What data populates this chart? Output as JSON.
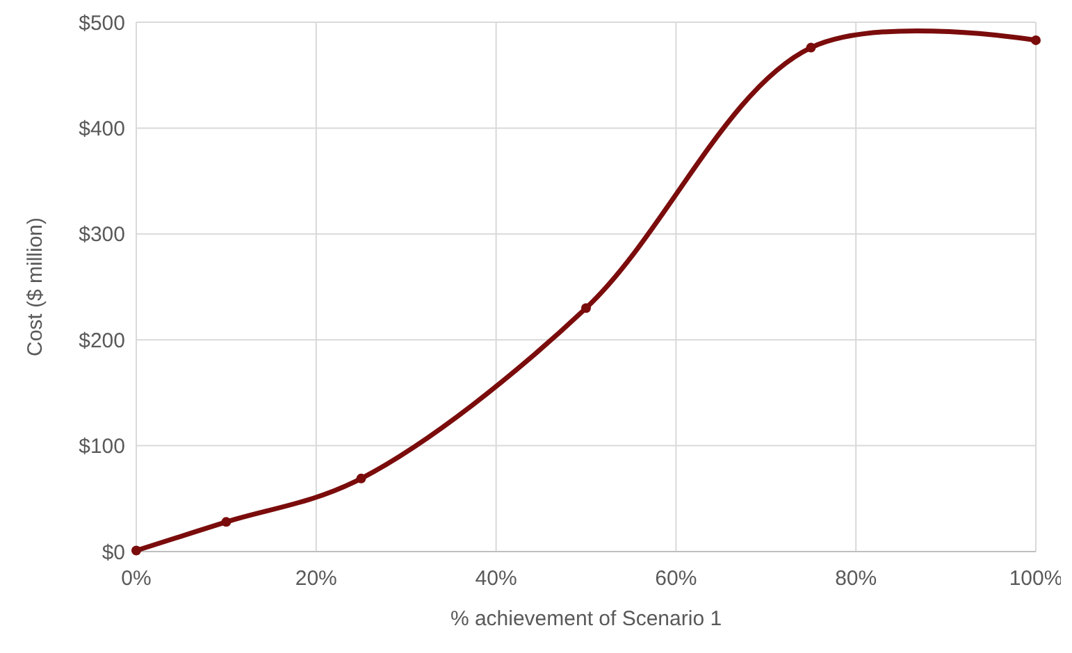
{
  "chart_data": {
    "type": "line",
    "xlabel": "% achievement of Scenario 1",
    "ylabel": "Cost ($ million)",
    "x": [
      0,
      10,
      25,
      50,
      75,
      100
    ],
    "series": [
      {
        "color": "#7b0c0c",
        "values": [
          1,
          28,
          69,
          230,
          476,
          483
        ]
      }
    ],
    "xlim": [
      0,
      100
    ],
    "ylim": [
      0,
      500
    ],
    "xticks": [
      {
        "value": 0,
        "label": "0%"
      },
      {
        "value": 20,
        "label": "20%"
      },
      {
        "value": 40,
        "label": "40%"
      },
      {
        "value": 60,
        "label": "60%"
      },
      {
        "value": 80,
        "label": "80%"
      },
      {
        "value": 100,
        "label": "100%"
      }
    ],
    "yticks": [
      {
        "value": 0,
        "label": "$0"
      },
      {
        "value": 100,
        "label": "$100"
      },
      {
        "value": 200,
        "label": "$200"
      },
      {
        "value": 300,
        "label": "$300"
      },
      {
        "value": 400,
        "label": "$400"
      },
      {
        "value": 500,
        "label": "$500"
      }
    ],
    "grid": true,
    "marker": "circle",
    "line_style": "solid"
  }
}
